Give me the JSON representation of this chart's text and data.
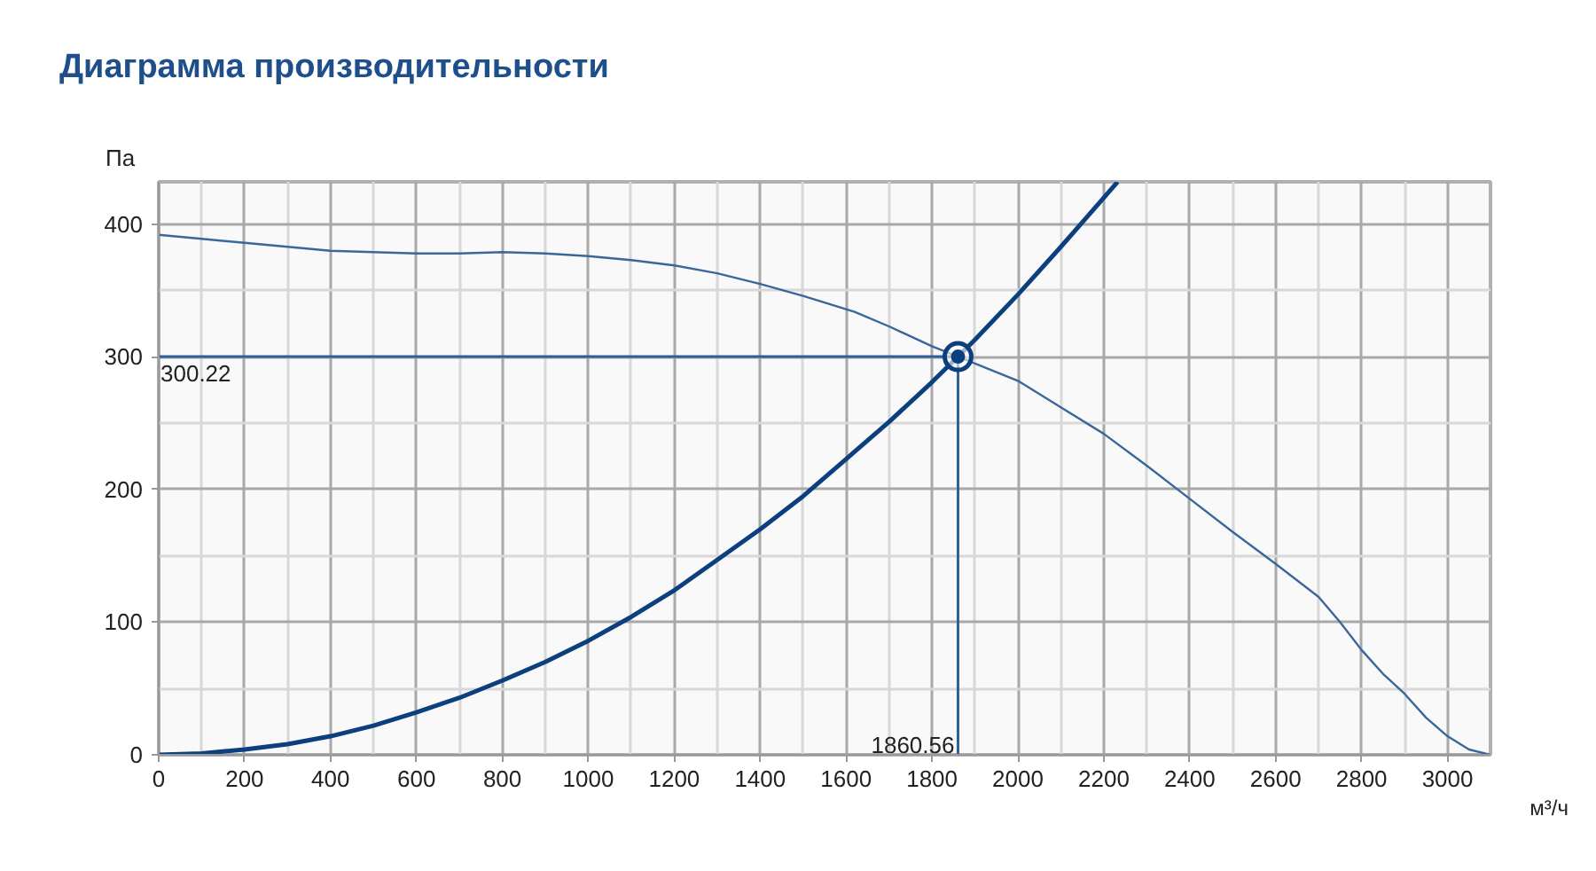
{
  "chart_data": {
    "type": "line",
    "title": "Диаграмма производительности",
    "xlabel": "м³/ч",
    "ylabel": "Па",
    "xlim": [
      0,
      3100
    ],
    "ylim": [
      0,
      432
    ],
    "xticks": [
      0,
      200,
      400,
      600,
      800,
      1000,
      1200,
      1400,
      1600,
      1800,
      2000,
      2200,
      2400,
      2600,
      2800,
      3000
    ],
    "yticks": [
      0,
      100,
      200,
      300,
      400
    ],
    "grid": true,
    "marker": "none",
    "line_style": "solid",
    "series": [
      {
        "color": "#3a679a",
        "x": [
          0,
          100,
          200,
          300,
          400,
          500,
          600,
          700,
          800,
          900,
          1000,
          1100,
          1200,
          1300,
          1400,
          1500,
          1620,
          1700,
          1800,
          1860.56,
          2000,
          2100,
          2200,
          2300,
          2400,
          2500,
          2600,
          2700,
          2750,
          2800,
          2850,
          2900,
          2950,
          3000,
          3050,
          3100
        ],
        "values": [
          392,
          389,
          386,
          383,
          380,
          379,
          378,
          378,
          379,
          378,
          376,
          373,
          369,
          363,
          355,
          346,
          334,
          323,
          308,
          300.22,
          282,
          262,
          242,
          218,
          193,
          168,
          144,
          119,
          100,
          79,
          61,
          46,
          28,
          14,
          4,
          0
        ]
      },
      {
        "color": "#0b3f7e",
        "x": [
          0,
          100,
          200,
          300,
          400,
          500,
          600,
          700,
          800,
          900,
          1000,
          1100,
          1200,
          1300,
          1400,
          1500,
          1600,
          1700,
          1800,
          1860.56,
          1900,
          2000,
          2100,
          2200,
          2232
        ],
        "values": [
          0,
          1,
          4,
          8,
          14,
          22,
          32,
          43,
          56,
          70,
          86,
          104,
          124,
          147,
          170,
          195,
          223,
          251,
          281,
          300.22,
          313,
          347,
          383,
          420,
          432
        ]
      },
      {
        "type": "scatter",
        "marker": "circle",
        "color": "#0b3f7e",
        "x": [
          1860.56
        ],
        "values": [
          300.22
        ]
      }
    ],
    "ref_lines": [
      {
        "axis": "y",
        "value": 300.22,
        "label": "300.22",
        "color": "#2f5f97"
      },
      {
        "axis": "x",
        "value": 1860.56,
        "label": "1860.56",
        "color": "#2f5f97"
      }
    ]
  }
}
